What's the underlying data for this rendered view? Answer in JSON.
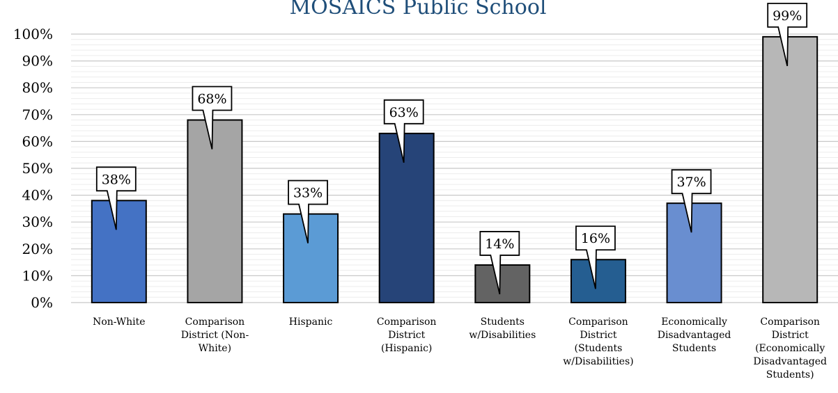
{
  "chart_data": {
    "type": "bar",
    "title": "MOSAICS Public School",
    "categories": [
      "Non-White",
      "Comparison District (Non-White)",
      "Hispanic",
      "Comparison District (Hispanic)",
      "Students w/Disabilities",
      "Comparison District (Students w/Disabilities)",
      "Economically Disadvantaged Students",
      "Comparison District (Economically Disadvantaged Students)"
    ],
    "category_label_lines": [
      [
        "Non-White"
      ],
      [
        "Comparison",
        "District (Non-",
        "White)"
      ],
      [
        "Hispanic"
      ],
      [
        "Comparison",
        "District",
        "(Hispanic)"
      ],
      [
        "Students",
        "w/Disabilities"
      ],
      [
        "Comparison",
        "District",
        "(Students",
        "w/Disabilities)"
      ],
      [
        "Economically",
        "Disadvantaged",
        "Students"
      ],
      [
        "Comparison",
        "District",
        "(Economically",
        "Disadvantaged",
        "Students)"
      ]
    ],
    "values": [
      38,
      68,
      33,
      63,
      14,
      16,
      37,
      99
    ],
    "data_labels": [
      "38%",
      "68%",
      "33%",
      "63%",
      "14%",
      "16%",
      "37%",
      "99%"
    ],
    "bar_colors": [
      "#4472c4",
      "#a5a5a5",
      "#5b9bd5",
      "#264478",
      "#636363",
      "#255e91",
      "#698ed0",
      "#b7b7b7"
    ],
    "ylim": [
      0,
      100
    ],
    "y_ticks": [
      "0%",
      "10%",
      "20%",
      "30%",
      "40%",
      "50%",
      "60%",
      "70%",
      "80%",
      "90%",
      "100%"
    ],
    "xlabel": "",
    "ylabel": "",
    "grid": true,
    "legend": "none"
  }
}
